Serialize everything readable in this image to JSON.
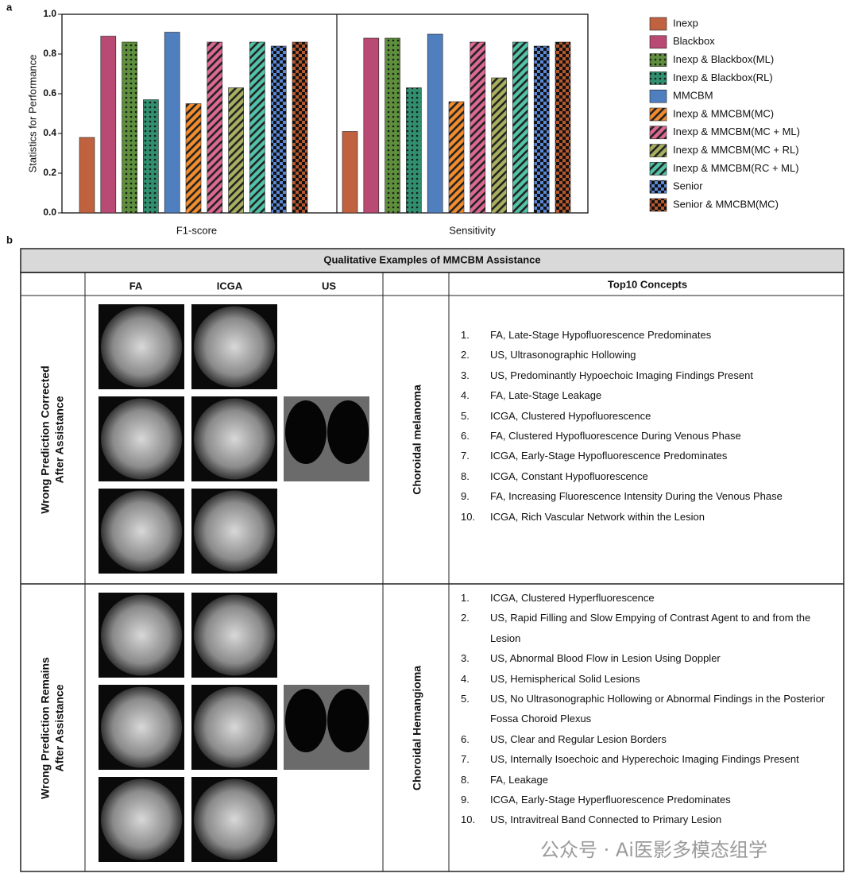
{
  "panel_labels": [
    "a",
    "b"
  ],
  "chart_data": {
    "type": "bar",
    "ylabel": "Statistics for Performance",
    "categories": [
      "F1-score",
      "Sensitivity"
    ],
    "ylim": [
      0,
      1
    ],
    "yticks": [
      {
        "value": 0,
        "label": "0.0"
      },
      0.2,
      0.4,
      0.6,
      0.8,
      {
        "value": 1,
        "label": "1.0"
      }
    ],
    "legend": "right",
    "series": [
      {
        "name": "Inexp",
        "color": "#c0623f",
        "pattern": "solid",
        "values": [
          0.38,
          0.41
        ]
      },
      {
        "name": "Blackbox",
        "color": "#b94a74",
        "pattern": "solid",
        "values": [
          0.89,
          0.88
        ]
      },
      {
        "name": "Inexp & Blackbox(ML)",
        "color": "#5e8f3c",
        "pattern": "dots",
        "values": [
          0.86,
          0.88
        ]
      },
      {
        "name": "Inexp & Blackbox(RL)",
        "color": "#2f8f6e",
        "pattern": "dots",
        "values": [
          0.57,
          0.63
        ]
      },
      {
        "name": "MMCBM",
        "color": "#4f7fbf",
        "pattern": "solid",
        "values": [
          0.91,
          0.9
        ]
      },
      {
        "name": "Inexp & MMCBM(MC)",
        "color": "#f28c2e",
        "pattern": "stripes",
        "values": [
          0.55,
          0.56
        ]
      },
      {
        "name": "Inexp & MMCBM(MC + ML)",
        "color": "#dc6893",
        "pattern": "stripes",
        "values": [
          0.86,
          0.86
        ]
      },
      {
        "name": "Inexp & MMCBM(MC + RL)",
        "color": "#a8b060",
        "pattern": "stripes",
        "values": [
          0.63,
          0.68
        ]
      },
      {
        "name": "Inexp & MMCBM(RC + ML)",
        "color": "#52c3a8",
        "pattern": "stripes",
        "values": [
          0.86,
          0.86
        ]
      },
      {
        "name": "Senior",
        "color": "#5a88d6",
        "pattern": "checker",
        "values": [
          0.84,
          0.84
        ]
      },
      {
        "name": "Senior & MMCBM(MC)",
        "color": "#b8582e",
        "pattern": "checker",
        "values": [
          0.86,
          0.86
        ]
      }
    ]
  },
  "table": {
    "title": "Qualitative Examples of MMCBM Assistance",
    "image_headers": [
      "FA",
      "ICGA",
      "US"
    ],
    "concepts_header": "Top10 Concepts",
    "rows": [
      {
        "label_lines": [
          "Wrong Prediction Corrected",
          "After Assistance"
        ],
        "diagnosis": "Choroidal melanoma",
        "concepts": [
          {
            "number": "1.",
            "text": "FA, Late-Stage Hypofluorescence Predominates"
          },
          {
            "number": "2.",
            "text": "US, Ultrasonographic Hollowing"
          },
          {
            "number": "3.",
            "text": "US, Predominantly Hypoechoic Imaging Findings Present"
          },
          {
            "number": "4.",
            "text": "FA, Late-Stage Leakage"
          },
          {
            "number": "5.",
            "text": "ICGA, Clustered Hypofluorescence"
          },
          {
            "number": "6.",
            "text": "FA, Clustered Hypofluorescence During Venous Phase"
          },
          {
            "number": "7.",
            "text": "ICGA, Early-Stage Hypofluorescence Predominates"
          },
          {
            "number": "8.",
            "text": "ICGA, Constant Hypofluorescence"
          },
          {
            "number": "9.",
            "text": "FA, Increasing Fluorescence Intensity During the Venous Phase"
          },
          {
            "number": "10.",
            "text": "ICGA, Rich Vascular Network within the Lesion"
          }
        ]
      },
      {
        "label_lines": [
          "Wrong Prediction Remains",
          "After Assistance"
        ],
        "diagnosis": "Choroidal Hemangioma",
        "concepts": [
          {
            "number": "1.",
            "text": "ICGA, Clustered Hyperfluorescence"
          },
          {
            "number": "2.",
            "text": "US, Rapid Filling and Slow Empying of Contrast Agent to and from the Lesion"
          },
          {
            "number": "3.",
            "text": "US, Abnormal Blood Flow in Lesion Using Doppler"
          },
          {
            "number": "4.",
            "text": "US, Hemispherical Solid Lesions"
          },
          {
            "number": "5.",
            "text": "US, No Ultrasonographic Hollowing or Abnormal Findings in the Posterior Fossa Choroid Plexus"
          },
          {
            "number": "6.",
            "text": "US, Clear and Regular Lesion Borders"
          },
          {
            "number": "7.",
            "text": "US, Internally Isoechoic and Hyperechoic Imaging Findings Present"
          },
          {
            "number": "8.",
            "text": "FA, Leakage"
          },
          {
            "number": "9.",
            "text": "ICGA, Early-Stage Hyperfluorescence Predominates"
          },
          {
            "number": "10.",
            "text": "US, Intravitreal Band Connected to Primary Lesion"
          }
        ]
      }
    ]
  },
  "watermark": "公众号 · Ai医影多模态组学"
}
